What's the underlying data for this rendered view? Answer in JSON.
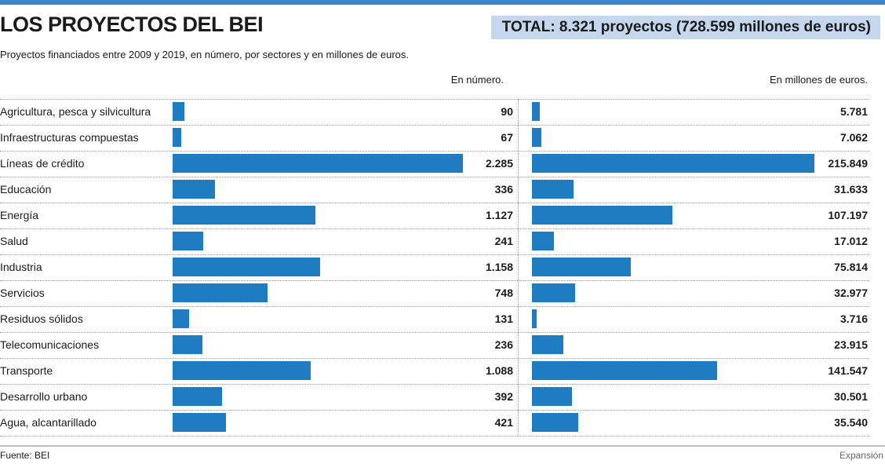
{
  "header": {
    "title": "LOS PROYECTOS DEL BEI",
    "total": "TOTAL: 8.321 proyectos (728.599 millones de euros)",
    "subtitle": "Proyectos financiados entre 2009 y 2019, en número, por sectores y en millones de euros."
  },
  "colors": {
    "bar": "#1f7cc1",
    "total_bg": "#c4d7ec",
    "top_rule": "#3a86c8"
  },
  "chart_data": [
    {
      "type": "bar",
      "orientation": "horizontal",
      "column_header": "En número.",
      "categories": [
        "Agricultura, pesca y silvicultura",
        "Infraestructuras compuestas",
        "Líneas de crédito",
        "Educación",
        "Energía",
        "Salud",
        "Industria",
        "Servicios",
        "Residuos sólidos",
        "Telecomunicaciones",
        "Transporte",
        "Desarrollo urbano",
        "Agua, alcantarillado"
      ],
      "values": [
        90,
        67,
        2285,
        336,
        1127,
        241,
        1158,
        748,
        131,
        236,
        1088,
        392,
        421
      ],
      "value_labels": [
        "90",
        "67",
        "2.285",
        "336",
        "1.127",
        "241",
        "1.158",
        "748",
        "131",
        "236",
        "1.088",
        "392",
        "421"
      ],
      "xlim": [
        0,
        2285
      ]
    },
    {
      "type": "bar",
      "orientation": "horizontal",
      "column_header": "En millones de euros.",
      "categories": [
        "Agricultura, pesca y silvicultura",
        "Infraestructuras compuestas",
        "Líneas de crédito",
        "Educación",
        "Energía",
        "Salud",
        "Industria",
        "Servicios",
        "Residuos sólidos",
        "Telecomunicaciones",
        "Transporte",
        "Desarrollo urbano",
        "Agua, alcantarillado"
      ],
      "values": [
        5781,
        7062,
        215849,
        31633,
        107197,
        17012,
        75814,
        32977,
        3716,
        23915,
        141547,
        30501,
        35540
      ],
      "value_labels": [
        "5.781",
        "7.062",
        "215.849",
        "31.633",
        "107.197",
        "17.012",
        "75.814",
        "32.977",
        "3.716",
        "23.915",
        "141.547",
        "30.501",
        "35.540"
      ],
      "xlim": [
        0,
        215849
      ]
    }
  ],
  "footer": {
    "source": "Fuente: BEI",
    "credit": "Expansión"
  }
}
